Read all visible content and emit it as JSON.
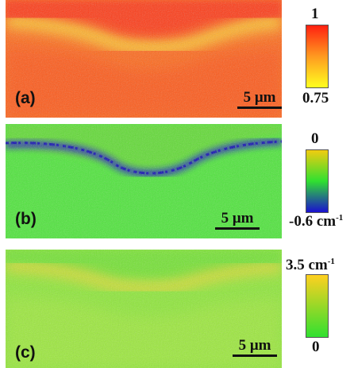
{
  "panels": [
    {
      "label": "(a)",
      "scale_bar": "5 μm",
      "colorbar": {
        "max": "1",
        "min": "0.75",
        "unit": ""
      },
      "colors": [
        "#ffff20",
        "#ff9a20",
        "#ff2010"
      ]
    },
    {
      "label": "(b)",
      "scale_bar": "5 μm",
      "colorbar": {
        "max": "0",
        "min": "-0.6",
        "unit": "cm",
        "unit_exp": "-1"
      },
      "colors": [
        "#1a10d0",
        "#30e030",
        "#f2cc10"
      ]
    },
    {
      "label": "(c)",
      "scale_bar": "5 μm",
      "colorbar": {
        "max": "3.5",
        "min": "0",
        "unit": "cm",
        "unit_exp": "-1"
      },
      "colors": [
        "#30e030",
        "#ffd020"
      ]
    }
  ]
}
